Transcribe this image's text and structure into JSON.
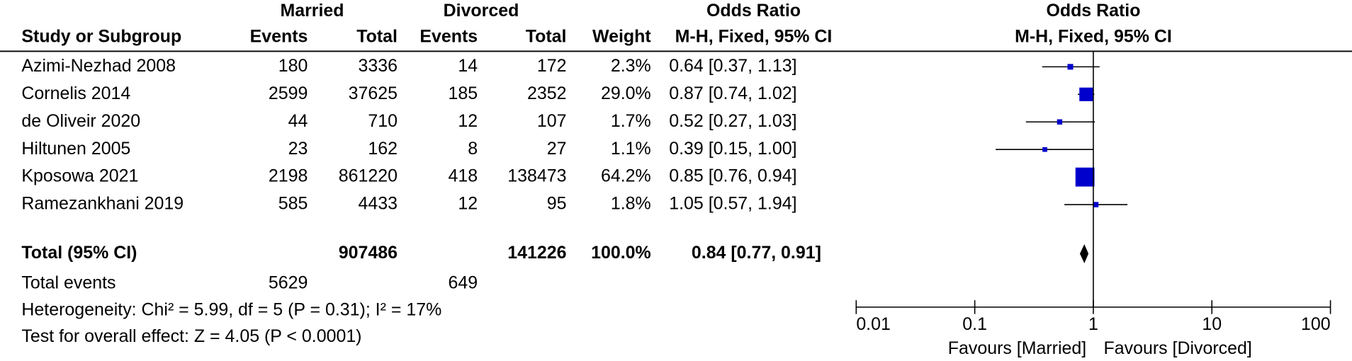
{
  "chart_data": {
    "type": "forest",
    "column_groups": [
      "Married",
      "Divorced",
      "Odds Ratio",
      "Odds Ratio"
    ],
    "columns": [
      "Study or Subgroup",
      "Events",
      "Total",
      "Events",
      "Total",
      "Weight",
      "M-H, Fixed, 95% CI",
      "M-H, Fixed, 95% CI"
    ],
    "studies": [
      {
        "name": "Azimi-Nezhad 2008",
        "events1": 180,
        "total1": 3336,
        "events2": 14,
        "total2": 172,
        "weight": 2.3,
        "weight_label": "2.3%",
        "or": 0.64,
        "lower": 0.37,
        "upper": 1.13,
        "ci_label": "0.64 [0.37, 1.13]"
      },
      {
        "name": "Cornelis 2014",
        "events1": 2599,
        "total1": 37625,
        "events2": 185,
        "total2": 2352,
        "weight": 29.0,
        "weight_label": "29.0%",
        "or": 0.87,
        "lower": 0.74,
        "upper": 1.02,
        "ci_label": "0.87 [0.74, 1.02]"
      },
      {
        "name": "de Oliveir 2020",
        "events1": 44,
        "total1": 710,
        "events2": 12,
        "total2": 107,
        "weight": 1.7,
        "weight_label": "1.7%",
        "or": 0.52,
        "lower": 0.27,
        "upper": 1.03,
        "ci_label": "0.52 [0.27, 1.03]"
      },
      {
        "name": "Hiltunen 2005",
        "events1": 23,
        "total1": 162,
        "events2": 8,
        "total2": 27,
        "weight": 1.1,
        "weight_label": "1.1%",
        "or": 0.39,
        "lower": 0.15,
        "upper": 1.0,
        "ci_label": "0.39 [0.15, 1.00]"
      },
      {
        "name": "Kposowa 2021",
        "events1": 2198,
        "total1": 861220,
        "events2": 418,
        "total2": 138473,
        "weight": 64.2,
        "weight_label": "64.2%",
        "or": 0.85,
        "lower": 0.76,
        "upper": 0.94,
        "ci_label": "0.85 [0.76, 0.94]"
      },
      {
        "name": "Ramezankhani 2019",
        "events1": 585,
        "total1": 4433,
        "events2": 12,
        "total2": 95,
        "weight": 1.8,
        "weight_label": "1.8%",
        "or": 1.05,
        "lower": 0.57,
        "upper": 1.94,
        "ci_label": "1.05 [0.57, 1.94]"
      }
    ],
    "total": {
      "label": "Total (95% CI)",
      "total1": 907486,
      "total2": 141226,
      "weight_label": "100.0%",
      "or": 0.84,
      "lower": 0.77,
      "upper": 0.91,
      "ci_label": "0.84 [0.77, 0.91]"
    },
    "total_events": {
      "label": "Total events",
      "events1": 5629,
      "events2": 649
    },
    "heterogeneity": "Heterogeneity: Chi² = 5.99, df = 5 (P = 0.31); I² = 17%",
    "overall_effect": "Test for overall effect: Z = 4.05 (P < 0.0001)",
    "xlim": [
      0.01,
      100
    ],
    "xticks": [
      0.01,
      0.1,
      1,
      10,
      100
    ],
    "log_scale": true,
    "favours": [
      "Favours [Married]",
      "Favours [Divorced]"
    ],
    "color": "#0000cc"
  }
}
